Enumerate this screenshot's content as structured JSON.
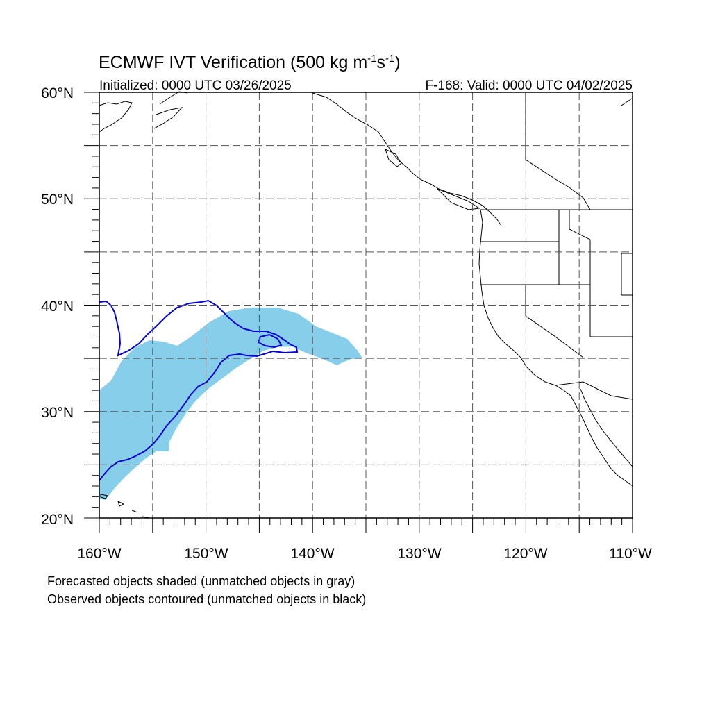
{
  "title": {
    "main": "ECMWF IVT Verification (500 kg m",
    "sup1": "-1",
    "mid": "s",
    "sup2": "-1",
    "end": ")"
  },
  "subtitle_left": "Initialized: 0000 UTC 03/26/2025",
  "subtitle_right": "F-168: Valid: 0000 UTC 04/02/2025",
  "map": {
    "lon_range": [
      -160,
      -110
    ],
    "lat_range": [
      20,
      60
    ],
    "lat_labels": [
      {
        "lat": 60,
        "text": "60°N"
      },
      {
        "lat": 50,
        "text": "50°N"
      },
      {
        "lat": 40,
        "text": "40°N"
      },
      {
        "lat": 30,
        "text": "30°N"
      },
      {
        "lat": 20,
        "text": "20°N"
      }
    ],
    "lon_labels": [
      {
        "lon": -160,
        "text": "160°W"
      },
      {
        "lon": -150,
        "text": "150°W"
      },
      {
        "lon": -140,
        "text": "140°W"
      },
      {
        "lon": -130,
        "text": "130°W"
      },
      {
        "lon": -120,
        "text": "120°W"
      },
      {
        "lon": -110,
        "text": "110°W"
      }
    ],
    "grid_lons": [
      -155,
      -150,
      -145,
      -140,
      -135,
      -130,
      -125,
      -120,
      -115
    ],
    "grid_lats": [
      25,
      30,
      35,
      40,
      45,
      50,
      55
    ],
    "forecast_color": "#87ceeb",
    "observed_color": "#0000dd"
  },
  "legend": {
    "line1": "Forecasted objects shaded (unmatched objects in gray)",
    "line2": "Observed objects contoured (unmatched objects in black)"
  }
}
